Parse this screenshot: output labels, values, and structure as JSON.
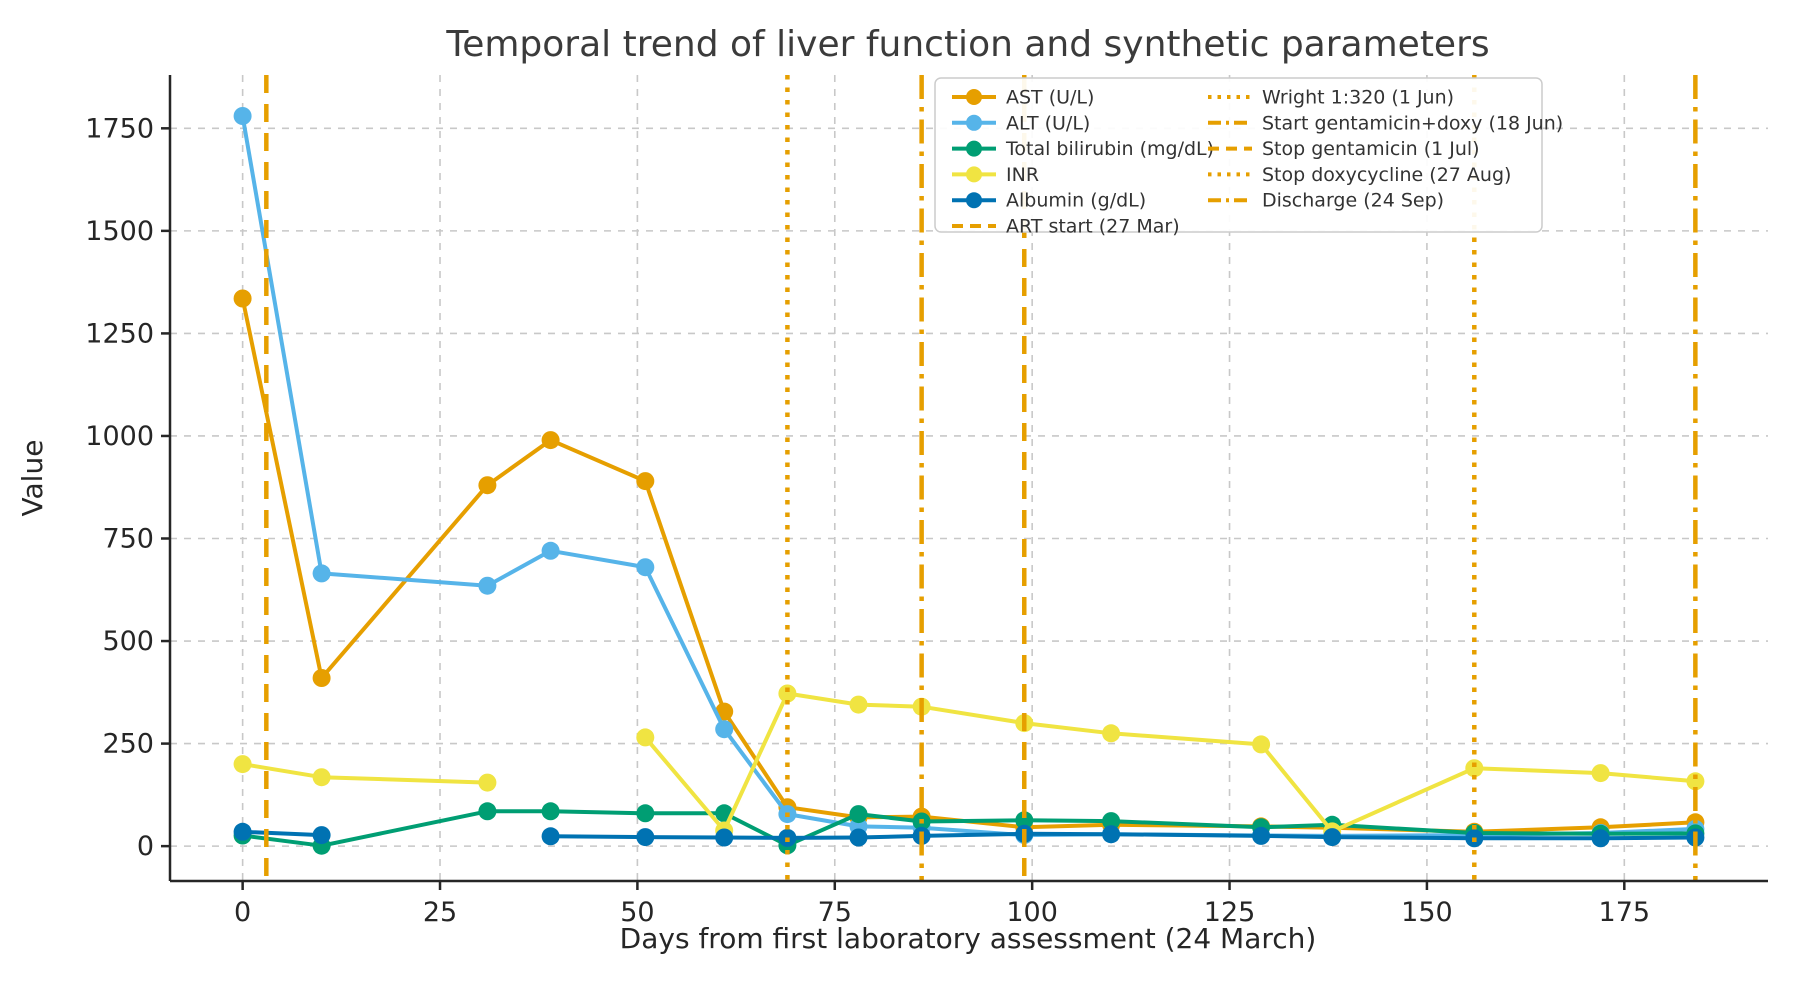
{
  "chart_data": {
    "type": "line",
    "title": "Temporal trend of liver function and synthetic parameters",
    "xlabel": "Days from first laboratory assessment (24 March)",
    "ylabel": "Value",
    "xlim": [
      -9.2,
      193.2
    ],
    "ylim": [
      -85,
      1880
    ],
    "xticks": [
      0,
      25,
      50,
      75,
      100,
      125,
      150,
      175
    ],
    "yticks": [
      0,
      250,
      500,
      750,
      1000,
      1250,
      1500,
      1750
    ],
    "grid": true,
    "grid_style": "dashed-light-gray",
    "legend_position": "upper right",
    "background_color": "#ffffff",
    "grid_color": "#c8c8c8",
    "spine_color": "#262626",
    "x_days": [
      0,
      10,
      31,
      39,
      51,
      61,
      69,
      78,
      86,
      99,
      110,
      129,
      138,
      156,
      172,
      184
    ],
    "series": [
      {
        "name": "AST (U/L)",
        "color": "#E69F00",
        "marker": "circle",
        "values": [
          1335,
          410,
          880,
          990,
          890,
          328,
          95,
          70,
          72,
          46,
          52,
          48,
          45,
          35,
          46,
          58
        ]
      },
      {
        "name": "ALT (U/L)",
        "color": "#56B4E9",
        "marker": "circle",
        "values": [
          1780,
          665,
          635,
          720,
          680,
          285,
          78,
          48,
          45,
          27,
          29,
          26,
          25,
          27,
          32,
          42
        ]
      },
      {
        "name": "Total bilirubin (mg/dL)",
        "color": "#009E73",
        "marker": "circle",
        "values": [
          26,
          1,
          85,
          85,
          80,
          80,
          2,
          78,
          60,
          63,
          61,
          46,
          52,
          32,
          30,
          31
        ]
      },
      {
        "name": "INR",
        "color": "#F0E442",
        "marker": "circle",
        "values": [
          200,
          168,
          155,
          null,
          265,
          38,
          372,
          345,
          340,
          300,
          275,
          248,
          36,
          190,
          178,
          158
        ]
      },
      {
        "name": "Albumin (g/dL)",
        "color": "#0072B2",
        "marker": "circle",
        "values": [
          35,
          27,
          null,
          24,
          22,
          21,
          20,
          21,
          25,
          30,
          29,
          25,
          22,
          19,
          19,
          21
        ]
      }
    ],
    "events": [
      {
        "name": "ART start (27 Mar)",
        "day": 3,
        "linestyle": "dashed",
        "color": "#E69F00"
      },
      {
        "name": "Wright 1:320 (1 Jun)",
        "day": 69,
        "linestyle": "dotted",
        "color": "#E69F00"
      },
      {
        "name": "Start gentamicin+doxy (18 Jun)",
        "day": 86,
        "linestyle": "dashdot",
        "color": "#E69F00"
      },
      {
        "name": "Stop gentamicin (1 Jul)",
        "day": 99,
        "linestyle": "dashed",
        "color": "#E69F00"
      },
      {
        "name": "Stop doxycycline (27 Aug)",
        "day": 156,
        "linestyle": "dotted",
        "color": "#E69F00"
      },
      {
        "name": "Discharge (24 Sep)",
        "day": 184,
        "linestyle": "dashdot",
        "color": "#E69F00"
      }
    ]
  }
}
